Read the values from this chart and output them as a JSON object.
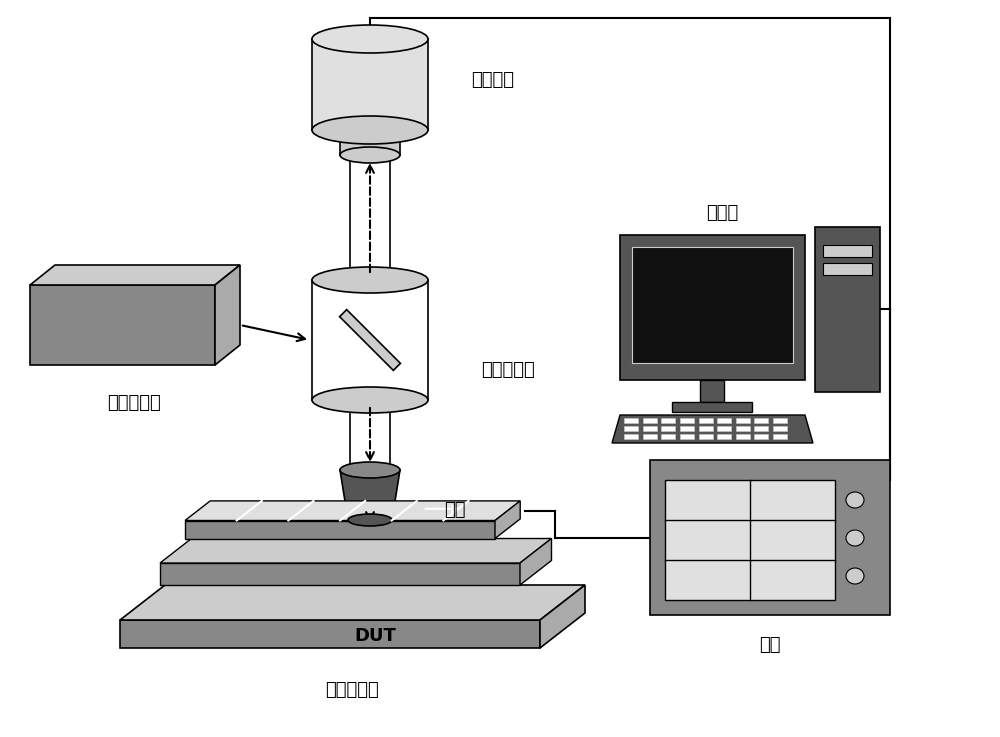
{
  "bg_color": "#ffffff",
  "labels": {
    "camera": "红外相机",
    "laser": "红外激光器",
    "beamsplitter": "半透半反镜",
    "objective": "物镜",
    "dut": "DUT",
    "stage": "三维移动台",
    "control": "控制台",
    "source": "源表"
  },
  "colors": {
    "gray_dark": "#555555",
    "gray_med": "#888888",
    "gray_light": "#aaaaaa",
    "gray_lighter": "#cccccc",
    "gray_lightest": "#e0e0e0",
    "white": "#ffffff",
    "black": "#000000"
  },
  "font_size": 13
}
